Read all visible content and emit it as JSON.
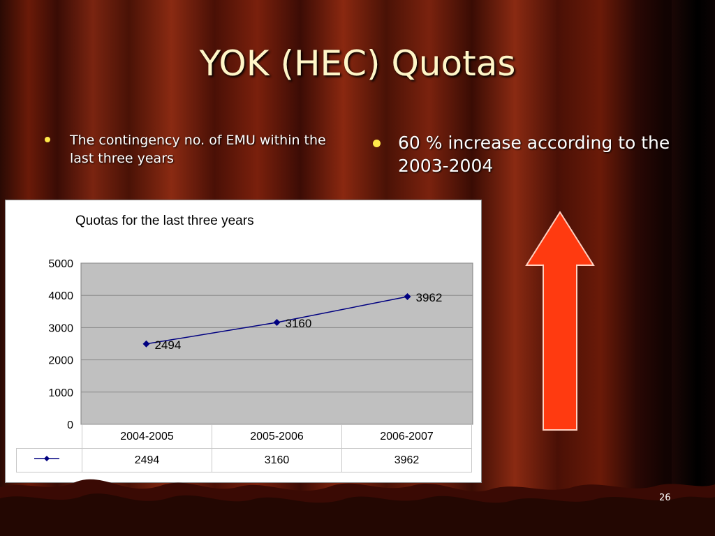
{
  "slide": {
    "title": "YOK (HEC) Quotas",
    "bullets": [
      "The contingency no. of EMU within the last three years",
      "60 % increase according to the 2003-2004"
    ],
    "page_number": "26"
  },
  "colors": {
    "title": "#fff6c8",
    "bullet_dot": "#ffe94a",
    "arrow_fill": "#ff3a10",
    "series_line": "#000080",
    "plot_background": "#c0c0c0"
  },
  "chart_data": {
    "type": "line",
    "title": "Quotas for the last three years",
    "categories": [
      "2004-2005",
      "2005-2006",
      "2006-2007"
    ],
    "series": [
      {
        "values": [
          2494,
          3160,
          3962
        ]
      }
    ],
    "data_labels": [
      "2494",
      "3160",
      "3962"
    ],
    "y_ticks": [
      "0",
      "1000",
      "2000",
      "3000",
      "4000",
      "5000"
    ],
    "ylim": [
      0,
      5000
    ],
    "grid": true,
    "legend": "data-table",
    "table_values": [
      "2494",
      "3160",
      "3962"
    ]
  }
}
